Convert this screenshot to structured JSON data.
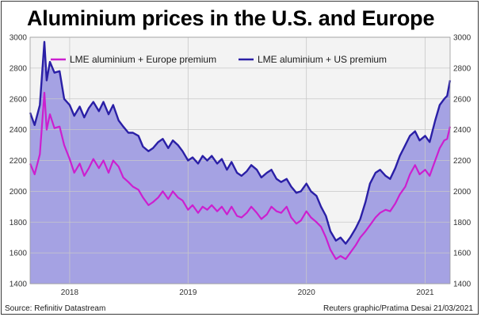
{
  "header": {
    "title": "Aluminium prices in the U.S. and Europe"
  },
  "footer": {
    "source": "Source: Refinitiv Datastream",
    "credit": "Reuters graphic/Pratima Desai 21/03/2021"
  },
  "colors": {
    "us_line": "#2a1fa6",
    "europe_line": "#cc1fcf",
    "area_fill": "#a5a2e3",
    "grid": "#c8c8c8",
    "plot_bg": "#f3f3f3"
  },
  "chart_data": {
    "type": "line",
    "ylim": [
      1400,
      3000
    ],
    "y_ticks": [
      1400,
      1600,
      1800,
      2000,
      2200,
      2400,
      2600,
      2800,
      3000
    ],
    "x_range": [
      "2017-09-01",
      "2021-03-19"
    ],
    "x_ticks": [
      {
        "label": "2018",
        "date": "2018-01-01"
      },
      {
        "label": "2019",
        "date": "2019-01-01"
      },
      {
        "label": "2020",
        "date": "2020-01-01"
      },
      {
        "label": "2021",
        "date": "2021-01-01"
      }
    ],
    "legend_position": "top",
    "grid": true,
    "series": [
      {
        "name": "LME aluminium + Europe premium",
        "color": "#cc1fcf",
        "fill": false,
        "points": [
          [
            "2017-09-01",
            2180
          ],
          [
            "2017-09-15",
            2110
          ],
          [
            "2017-10-01",
            2240
          ],
          [
            "2017-10-15",
            2640
          ],
          [
            "2017-10-22",
            2400
          ],
          [
            "2017-11-01",
            2500
          ],
          [
            "2017-11-15",
            2410
          ],
          [
            "2017-12-01",
            2420
          ],
          [
            "2017-12-15",
            2300
          ],
          [
            "2018-01-01",
            2210
          ],
          [
            "2018-01-15",
            2120
          ],
          [
            "2018-02-01",
            2180
          ],
          [
            "2018-02-15",
            2100
          ],
          [
            "2018-03-01",
            2150
          ],
          [
            "2018-03-15",
            2210
          ],
          [
            "2018-04-01",
            2150
          ],
          [
            "2018-04-15",
            2200
          ],
          [
            "2018-05-01",
            2120
          ],
          [
            "2018-05-15",
            2200
          ],
          [
            "2018-06-01",
            2160
          ],
          [
            "2018-06-15",
            2090
          ],
          [
            "2018-07-01",
            2060
          ],
          [
            "2018-07-15",
            2030
          ],
          [
            "2018-08-01",
            2010
          ],
          [
            "2018-08-15",
            1960
          ],
          [
            "2018-09-01",
            1910
          ],
          [
            "2018-09-15",
            1930
          ],
          [
            "2018-10-01",
            1960
          ],
          [
            "2018-10-15",
            2000
          ],
          [
            "2018-11-01",
            1950
          ],
          [
            "2018-11-15",
            2000
          ],
          [
            "2018-12-01",
            1960
          ],
          [
            "2018-12-15",
            1940
          ],
          [
            "2019-01-01",
            1880
          ],
          [
            "2019-01-15",
            1910
          ],
          [
            "2019-02-01",
            1860
          ],
          [
            "2019-02-15",
            1900
          ],
          [
            "2019-03-01",
            1880
          ],
          [
            "2019-03-15",
            1910
          ],
          [
            "2019-04-01",
            1870
          ],
          [
            "2019-04-15",
            1900
          ],
          [
            "2019-05-01",
            1850
          ],
          [
            "2019-05-15",
            1900
          ],
          [
            "2019-06-01",
            1840
          ],
          [
            "2019-06-15",
            1830
          ],
          [
            "2019-07-01",
            1860
          ],
          [
            "2019-07-15",
            1900
          ],
          [
            "2019-08-01",
            1860
          ],
          [
            "2019-08-15",
            1820
          ],
          [
            "2019-09-01",
            1850
          ],
          [
            "2019-09-15",
            1900
          ],
          [
            "2019-10-01",
            1870
          ],
          [
            "2019-10-15",
            1860
          ],
          [
            "2019-11-01",
            1900
          ],
          [
            "2019-11-15",
            1830
          ],
          [
            "2019-12-01",
            1790
          ],
          [
            "2019-12-15",
            1810
          ],
          [
            "2020-01-01",
            1870
          ],
          [
            "2020-01-15",
            1830
          ],
          [
            "2020-02-01",
            1800
          ],
          [
            "2020-02-15",
            1770
          ],
          [
            "2020-03-01",
            1700
          ],
          [
            "2020-03-15",
            1620
          ],
          [
            "2020-04-01",
            1560
          ],
          [
            "2020-04-15",
            1580
          ],
          [
            "2020-05-01",
            1560
          ],
          [
            "2020-05-15",
            1600
          ],
          [
            "2020-06-01",
            1650
          ],
          [
            "2020-06-15",
            1700
          ],
          [
            "2020-07-01",
            1740
          ],
          [
            "2020-07-15",
            1780
          ],
          [
            "2020-08-01",
            1830
          ],
          [
            "2020-08-15",
            1860
          ],
          [
            "2020-09-01",
            1880
          ],
          [
            "2020-09-15",
            1870
          ],
          [
            "2020-10-01",
            1920
          ],
          [
            "2020-10-15",
            1980
          ],
          [
            "2020-11-01",
            2030
          ],
          [
            "2020-11-15",
            2110
          ],
          [
            "2020-12-01",
            2170
          ],
          [
            "2020-12-15",
            2110
          ],
          [
            "2021-01-01",
            2140
          ],
          [
            "2021-01-15",
            2100
          ],
          [
            "2021-02-01",
            2200
          ],
          [
            "2021-02-15",
            2280
          ],
          [
            "2021-03-01",
            2330
          ],
          [
            "2021-03-10",
            2340
          ],
          [
            "2021-03-19",
            2420
          ]
        ]
      },
      {
        "name": "LME aluminium + US premium",
        "color": "#2a1fa6",
        "fill": true,
        "points": [
          [
            "2017-09-01",
            2510
          ],
          [
            "2017-09-15",
            2430
          ],
          [
            "2017-10-01",
            2560
          ],
          [
            "2017-10-15",
            2970
          ],
          [
            "2017-10-22",
            2720
          ],
          [
            "2017-11-01",
            2840
          ],
          [
            "2017-11-15",
            2770
          ],
          [
            "2017-12-01",
            2780
          ],
          [
            "2017-12-15",
            2600
          ],
          [
            "2018-01-01",
            2560
          ],
          [
            "2018-01-15",
            2490
          ],
          [
            "2018-02-01",
            2550
          ],
          [
            "2018-02-15",
            2480
          ],
          [
            "2018-03-01",
            2540
          ],
          [
            "2018-03-15",
            2580
          ],
          [
            "2018-04-01",
            2520
          ],
          [
            "2018-04-15",
            2580
          ],
          [
            "2018-05-01",
            2500
          ],
          [
            "2018-05-15",
            2560
          ],
          [
            "2018-06-01",
            2460
          ],
          [
            "2018-06-15",
            2420
          ],
          [
            "2018-07-01",
            2380
          ],
          [
            "2018-07-15",
            2380
          ],
          [
            "2018-08-01",
            2360
          ],
          [
            "2018-08-15",
            2290
          ],
          [
            "2018-09-01",
            2260
          ],
          [
            "2018-09-15",
            2280
          ],
          [
            "2018-10-01",
            2320
          ],
          [
            "2018-10-15",
            2340
          ],
          [
            "2018-11-01",
            2280
          ],
          [
            "2018-11-15",
            2330
          ],
          [
            "2018-12-01",
            2300
          ],
          [
            "2018-12-15",
            2260
          ],
          [
            "2019-01-01",
            2200
          ],
          [
            "2019-01-15",
            2220
          ],
          [
            "2019-02-01",
            2180
          ],
          [
            "2019-02-15",
            2230
          ],
          [
            "2019-03-01",
            2200
          ],
          [
            "2019-03-15",
            2230
          ],
          [
            "2019-04-01",
            2180
          ],
          [
            "2019-04-15",
            2210
          ],
          [
            "2019-05-01",
            2140
          ],
          [
            "2019-05-15",
            2190
          ],
          [
            "2019-06-01",
            2120
          ],
          [
            "2019-06-15",
            2100
          ],
          [
            "2019-07-01",
            2130
          ],
          [
            "2019-07-15",
            2170
          ],
          [
            "2019-08-01",
            2140
          ],
          [
            "2019-08-15",
            2090
          ],
          [
            "2019-09-01",
            2120
          ],
          [
            "2019-09-15",
            2140
          ],
          [
            "2019-10-01",
            2080
          ],
          [
            "2019-10-15",
            2060
          ],
          [
            "2019-11-01",
            2080
          ],
          [
            "2019-11-15",
            2030
          ],
          [
            "2019-12-01",
            1990
          ],
          [
            "2019-12-15",
            2000
          ],
          [
            "2020-01-01",
            2050
          ],
          [
            "2020-01-15",
            2000
          ],
          [
            "2020-02-01",
            1970
          ],
          [
            "2020-02-15",
            1900
          ],
          [
            "2020-03-01",
            1840
          ],
          [
            "2020-03-15",
            1740
          ],
          [
            "2020-04-01",
            1680
          ],
          [
            "2020-04-15",
            1700
          ],
          [
            "2020-05-01",
            1660
          ],
          [
            "2020-05-15",
            1700
          ],
          [
            "2020-06-01",
            1760
          ],
          [
            "2020-06-15",
            1820
          ],
          [
            "2020-07-01",
            1930
          ],
          [
            "2020-07-15",
            2050
          ],
          [
            "2020-08-01",
            2120
          ],
          [
            "2020-08-15",
            2140
          ],
          [
            "2020-09-01",
            2100
          ],
          [
            "2020-09-15",
            2080
          ],
          [
            "2020-10-01",
            2150
          ],
          [
            "2020-10-15",
            2230
          ],
          [
            "2020-11-01",
            2300
          ],
          [
            "2020-11-15",
            2360
          ],
          [
            "2020-12-01",
            2390
          ],
          [
            "2020-12-15",
            2330
          ],
          [
            "2021-01-01",
            2360
          ],
          [
            "2021-01-15",
            2320
          ],
          [
            "2021-02-01",
            2460
          ],
          [
            "2021-02-15",
            2560
          ],
          [
            "2021-03-01",
            2600
          ],
          [
            "2021-03-10",
            2620
          ],
          [
            "2021-03-19",
            2720
          ]
        ]
      }
    ]
  }
}
